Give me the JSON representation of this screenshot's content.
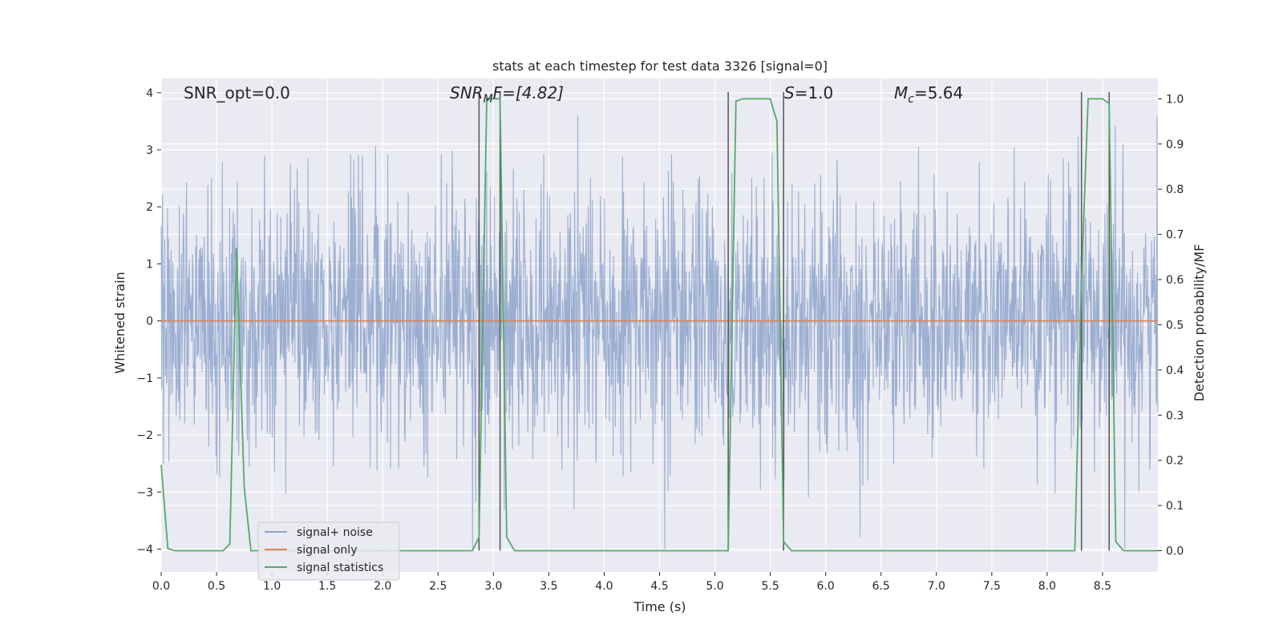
{
  "chart_data": {
    "type": "line",
    "title": "stats at each timestep for test data 3326 [signal=0]",
    "xlabel": "Time (s)",
    "ylabel_left": "Whitened strain",
    "ylabel_right": "Detection probability/MF",
    "xlim": [
      0,
      9.0
    ],
    "ylim_left": [
      -4.4,
      4.25
    ],
    "ylim_right": [
      -0.047,
      1.045
    ],
    "x_ticks": [
      0.0,
      0.5,
      1.0,
      1.5,
      2.0,
      2.5,
      3.0,
      3.5,
      4.0,
      4.5,
      5.0,
      5.5,
      6.0,
      6.5,
      7.0,
      7.5,
      8.0,
      8.5
    ],
    "x_tick_labels": [
      "0.0",
      "0.5",
      "1.0",
      "1.5",
      "2.0",
      "2.5",
      "3.0",
      "3.5",
      "4.0",
      "4.5",
      "5.0",
      "5.5",
      "6.0",
      "6.5",
      "7.0",
      "7.5",
      "8.0",
      "8.5"
    ],
    "y_left_ticks": [
      -4,
      -3,
      -2,
      -1,
      0,
      1,
      2,
      3,
      4
    ],
    "y_left_tick_labels": [
      "−4",
      "−3",
      "−2",
      "−1",
      "0",
      "1",
      "2",
      "3",
      "4"
    ],
    "y_right_ticks": [
      0.0,
      0.1,
      0.2,
      0.3,
      0.4,
      0.5,
      0.6,
      0.7,
      0.8,
      0.9,
      1.0
    ],
    "y_right_tick_labels": [
      "0.0",
      "0.1",
      "0.2",
      "0.3",
      "0.4",
      "0.5",
      "0.6",
      "0.7",
      "0.8",
      "0.9",
      "1.0"
    ],
    "grid": true,
    "legend_position": "lower-left",
    "annotations": {
      "snr_opt": "SNR_opt=0.0",
      "snr_mf_prefix": "SNR",
      "snr_mf_sub": "M",
      "snr_mf_suffix": "F=[4.82]",
      "s_italic": "S",
      "s_value": "=1.0",
      "mc_italic": "M",
      "mc_sub": "c",
      "mc_value": "=5.64"
    },
    "series": [
      {
        "name": "signal+ noise",
        "color": "#4c72b0",
        "note_style": "dense noise trace, mostly within about ±1.7 with spikes up to about 3.6 and down to about -4.0"
      },
      {
        "name": "signal only",
        "color": "#dd8452",
        "x": [
          0.0,
          9.0
        ],
        "y": [
          0.0,
          0.0
        ]
      },
      {
        "name": "signal statistics",
        "color": "#55a868",
        "axis": "right",
        "x": [
          0.0,
          0.06,
          0.12,
          0.25,
          0.56,
          0.62,
          0.68,
          0.75,
          0.81,
          0.88,
          2.81,
          2.87,
          2.94,
          3.0,
          3.06,
          3.12,
          3.19,
          5.12,
          5.19,
          5.25,
          5.31,
          5.37,
          5.44,
          5.5,
          5.56,
          5.62,
          5.69,
          5.75,
          8.25,
          8.31,
          8.37,
          8.44,
          8.5,
          8.56,
          8.62,
          8.69,
          9.0
        ],
        "y": [
          0.19,
          0.005,
          0.0,
          0.0,
          0.0,
          0.015,
          0.67,
          0.14,
          0.0,
          0.0,
          0.0,
          0.03,
          1.0,
          1.0,
          1.0,
          0.03,
          0.0,
          0.0,
          0.995,
          1.0,
          1.0,
          1.0,
          1.0,
          1.0,
          0.95,
          0.02,
          0.0,
          0.0,
          0.0,
          0.6,
          1.0,
          1.0,
          1.0,
          0.99,
          0.02,
          0.0,
          0.0
        ]
      }
    ],
    "vertical_markers": [
      2.87,
      3.06,
      5.12,
      5.62,
      8.31,
      8.56
    ]
  }
}
